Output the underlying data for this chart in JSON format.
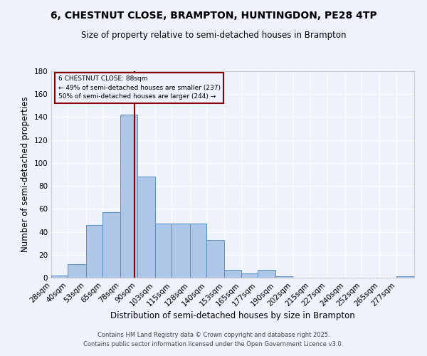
{
  "title_line1": "6, CHESTNUT CLOSE, BRAMPTON, HUNTINGDON, PE28 4TP",
  "title_line2": "Size of property relative to semi-detached houses in Brampton",
  "xlabel": "Distribution of semi-detached houses by size in Brampton",
  "ylabel": "Number of semi-detached properties",
  "bin_labels": [
    "28sqm",
    "40sqm",
    "53sqm",
    "65sqm",
    "78sqm",
    "90sqm",
    "103sqm",
    "115sqm",
    "128sqm",
    "140sqm",
    "153sqm",
    "165sqm",
    "177sqm",
    "190sqm",
    "202sqm",
    "215sqm",
    "227sqm",
    "240sqm",
    "252sqm",
    "265sqm",
    "277sqm"
  ],
  "bin_edges": [
    28,
    40,
    53,
    65,
    78,
    90,
    103,
    115,
    128,
    140,
    153,
    165,
    177,
    190,
    202,
    215,
    227,
    240,
    252,
    265,
    277
  ],
  "bar_heights": [
    2,
    12,
    46,
    57,
    142,
    88,
    47,
    47,
    47,
    33,
    7,
    4,
    7,
    1,
    0,
    0,
    0,
    0,
    0,
    0,
    1
  ],
  "bar_color": "#aec6e8",
  "bar_edge_color": "#5a8fc0",
  "property_size": 88,
  "vline_color": "#8b0000",
  "annotation_box_text": "6 CHESTNUT CLOSE: 88sqm\n← 49% of semi-detached houses are smaller (237)\n50% of semi-detached houses are larger (244) →",
  "annotation_box_color": "#8b0000",
  "background_color": "#eef2fb",
  "grid_color": "#ffffff",
  "footer_text": "Contains HM Land Registry data © Crown copyright and database right 2025.\nContains public sector information licensed under the Open Government Licence v3.0.",
  "ylim": [
    0,
    180
  ],
  "yticks": [
    0,
    20,
    40,
    60,
    80,
    100,
    120,
    140,
    160,
    180
  ]
}
